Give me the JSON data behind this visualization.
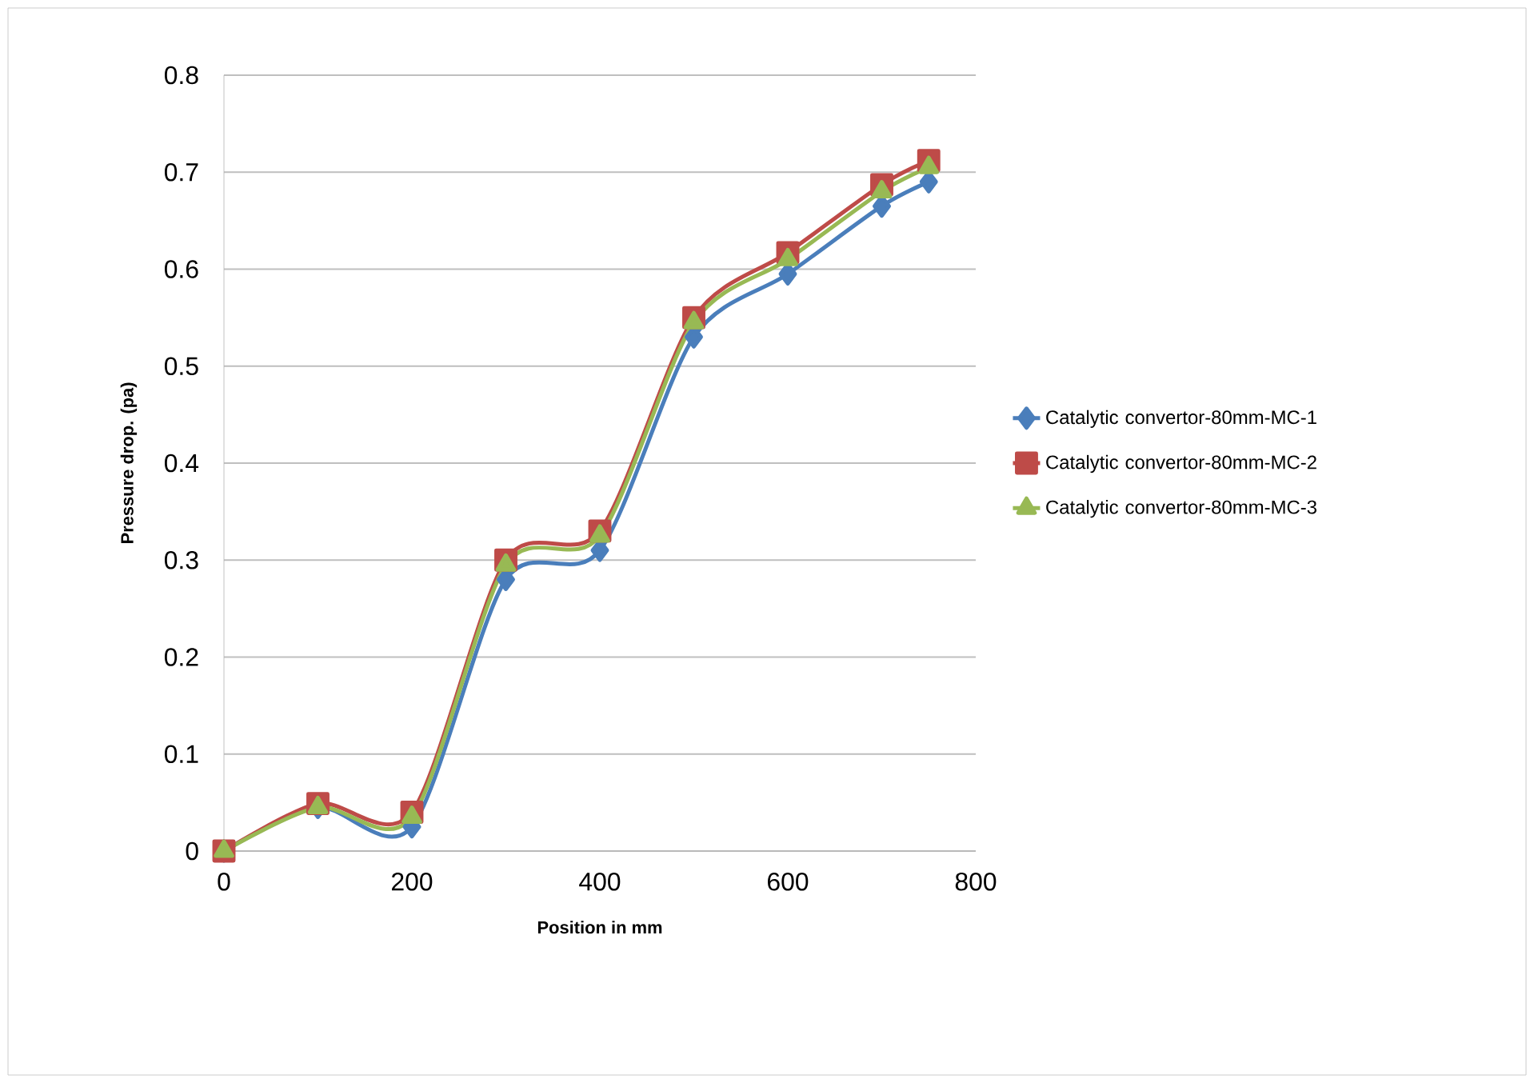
{
  "chart_data": {
    "type": "line",
    "xlabel": "Position in mm",
    "ylabel": "Pressure drop. (pa)",
    "x": [
      0,
      100,
      200,
      300,
      400,
      500,
      600,
      700,
      750
    ],
    "xlim": [
      0,
      800
    ],
    "xticks": [
      0,
      200,
      400,
      600,
      800
    ],
    "ylim": [
      0,
      0.8
    ],
    "yticks": [
      0,
      0.1,
      0.2,
      0.3,
      0.4,
      0.5,
      0.6,
      0.7,
      0.8
    ],
    "grid": "y",
    "legend": "right",
    "line_style": "solid",
    "series": [
      {
        "name": "Catalytic convertor-80mm-MC-1",
        "color": "#4a7ebb",
        "marker": "diamond",
        "values": [
          0,
          0.045,
          0.025,
          0.28,
          0.31,
          0.53,
          0.595,
          0.665,
          0.69
        ]
      },
      {
        "name": "Catalytic convertor-80mm-MC-2",
        "color": "#be4b48",
        "marker": "square",
        "values": [
          0,
          0.049,
          0.04,
          0.3,
          0.33,
          0.55,
          0.617,
          0.687,
          0.712
        ]
      },
      {
        "name": "Catalytic convertor-80mm-MC-3",
        "color": "#98b954",
        "marker": "triangle",
        "values": [
          0,
          0.045,
          0.035,
          0.295,
          0.325,
          0.545,
          0.61,
          0.68,
          0.705
        ]
      }
    ]
  }
}
